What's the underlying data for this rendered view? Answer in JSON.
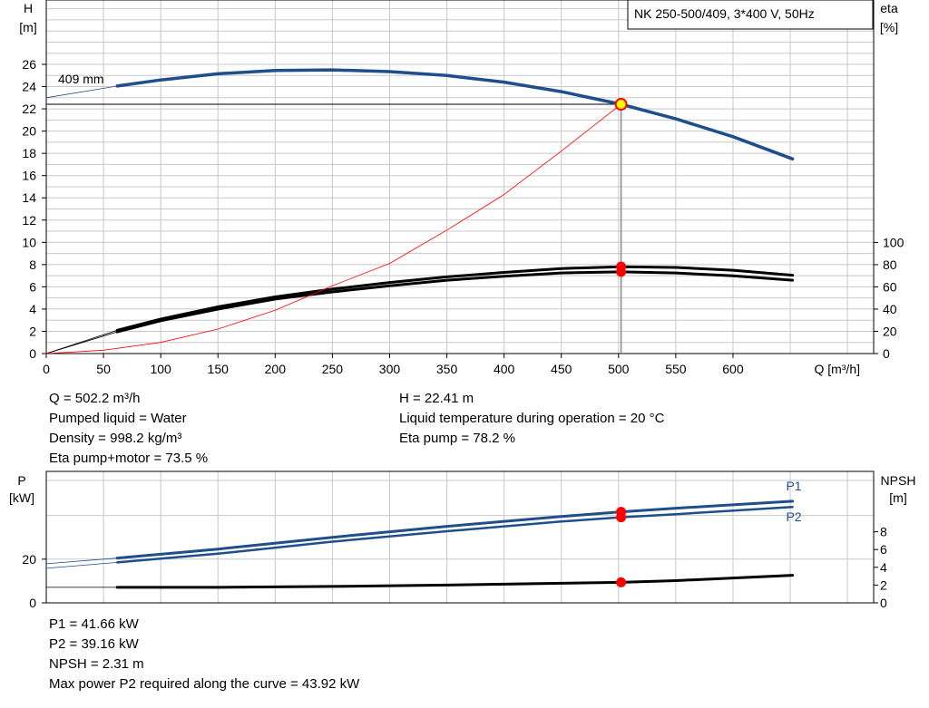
{
  "title": "NK 250-500/409, 3*400 V, 50Hz",
  "colors": {
    "head": "#1f4e8c",
    "efficiency": "#000000",
    "system": "#ff0000",
    "marker": "#ff0000",
    "operating_point_fill": "#ffff00",
    "grid": "#c8c8c8"
  },
  "chart_data": [
    {
      "type": "line",
      "x_axis": {
        "label": "Q [m³/h]",
        "range": [
          0,
          700
        ],
        "ticks": [
          0,
          50,
          100,
          150,
          200,
          250,
          300,
          350,
          400,
          450,
          500,
          550,
          600
        ]
      },
      "y_left": {
        "label_top": "H",
        "label_unit": "[m]",
        "range": [
          0,
          26
        ],
        "ticks": [
          0,
          2,
          4,
          6,
          8,
          10,
          12,
          14,
          16,
          18,
          20,
          22,
          24,
          26
        ]
      },
      "y_right": {
        "label_top": "eta",
        "label_unit": "[%]",
        "range": [
          0,
          100
        ],
        "ticks": [
          0,
          20,
          40,
          60,
          80,
          100
        ]
      },
      "grid": true,
      "impeller_label": "409 mm",
      "series": [
        {
          "key": "head",
          "axis": "left",
          "x": [
            62,
            100,
            150,
            200,
            250,
            300,
            350,
            400,
            450,
            502.2,
            550,
            600,
            652
          ],
          "y": [
            24.05,
            24.6,
            25.15,
            25.45,
            25.5,
            25.35,
            25.0,
            24.4,
            23.55,
            22.41,
            21.1,
            19.5,
            17.5
          ],
          "extrapolated": {
            "x": [
              0,
              62
            ],
            "y": [
              23.0,
              24.05
            ]
          }
        },
        {
          "key": "eta_pump",
          "axis": "right",
          "x": [
            62,
            100,
            150,
            200,
            250,
            300,
            350,
            400,
            450,
            502.2,
            550,
            600,
            652
          ],
          "y": [
            21,
            31,
            42,
            51,
            58,
            64,
            69,
            73,
            76.5,
            78.2,
            77.5,
            75,
            70.5
          ],
          "extrapolated": {
            "x": [
              0,
              62
            ],
            "y": [
              0,
              21
            ]
          }
        },
        {
          "key": "eta_pump_motor",
          "axis": "right",
          "x": [
            62,
            100,
            150,
            200,
            250,
            300,
            350,
            400,
            450,
            502.2,
            550,
            600,
            652
          ],
          "y": [
            19.5,
            29.5,
            40,
            49,
            55.5,
            61,
            66,
            69.5,
            72.5,
            73.5,
            72.5,
            70,
            66
          ],
          "extrapolated": {
            "x": [
              0,
              62
            ],
            "y": [
              0,
              19.5
            ]
          }
        },
        {
          "key": "system",
          "axis": "left",
          "x": [
            0,
            50,
            100,
            150,
            200,
            250,
            300,
            350,
            400,
            450,
            502.2
          ],
          "y": [
            0,
            0.3,
            1.0,
            2.2,
            3.9,
            6.1,
            8.1,
            11.1,
            14.3,
            18.2,
            22.41
          ]
        }
      ],
      "operating_point": {
        "x": 502.2,
        "y": 22.41
      },
      "eta_markers": [
        78.2,
        73.5
      ]
    },
    {
      "type": "line",
      "x_axis": {
        "range": [
          0,
          700
        ]
      },
      "y_left": {
        "label_top": "P",
        "label_unit": "[kW]",
        "range": [
          0,
          50
        ],
        "ticks": [
          0,
          20
        ]
      },
      "y_right": {
        "label_top": "NPSH",
        "label_unit": "[m]",
        "range": [
          0,
          10
        ],
        "ticks": [
          0,
          2,
          4,
          6,
          8
        ]
      },
      "grid": true,
      "series": [
        {
          "key": "P1",
          "name": "P1",
          "axis": "left",
          "x": [
            62,
            150,
            250,
            350,
            450,
            502.2,
            550,
            652
          ],
          "y": [
            20.5,
            24.6,
            30.0,
            35.0,
            39.5,
            41.66,
            43.3,
            46.5
          ],
          "extrapolated": {
            "x": [
              0,
              62
            ],
            "y": [
              17.9,
              20.5
            ]
          }
        },
        {
          "key": "P2",
          "name": "P2",
          "axis": "left",
          "x": [
            62,
            150,
            250,
            350,
            450,
            502.2,
            550,
            652
          ],
          "y": [
            18.5,
            22.5,
            28.0,
            32.8,
            37.2,
            39.16,
            40.6,
            43.92
          ],
          "extrapolated": {
            "x": [
              0,
              62
            ],
            "y": [
              15.8,
              18.5
            ]
          }
        },
        {
          "key": "NPSH",
          "name": "NPSH",
          "axis": "right",
          "x": [
            62,
            150,
            250,
            350,
            450,
            502.2,
            550,
            652
          ],
          "y": [
            1.75,
            1.75,
            1.85,
            2.0,
            2.2,
            2.31,
            2.5,
            3.1
          ],
          "extrapolated": {
            "x": [
              0,
              62
            ],
            "y": [
              1.75,
              1.75
            ]
          }
        }
      ],
      "markers": {
        "P1": 41.66,
        "P2": 39.16,
        "NPSH": 2.31
      }
    }
  ],
  "info_upper_left": [
    "Q = 502.2 m³/h",
    "Pumped liquid = Water",
    "Density = 998.2 kg/m³",
    "Eta pump+motor = 73.5 %"
  ],
  "info_upper_right": [
    "H = 22.41 m",
    "Liquid temperature during operation = 20 °C",
    "Eta pump = 78.2 %"
  ],
  "info_lower": [
    "P1 = 41.66 kW",
    "P2 = 39.16 kW",
    "NPSH = 2.31 m",
    "Max power P2 required along the curve = 43.92 kW"
  ]
}
